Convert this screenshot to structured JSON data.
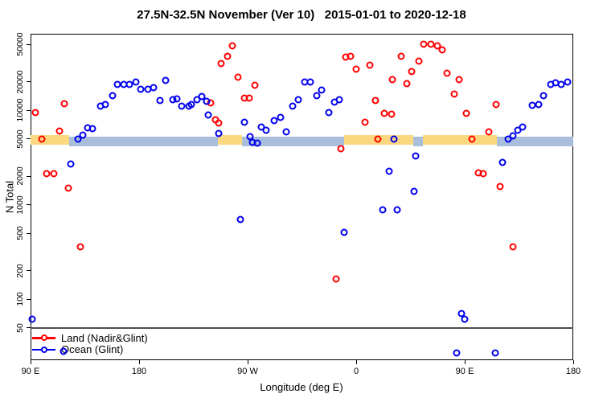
{
  "chart_data": {
    "type": "scatter",
    "title": "27.5N-32.5N November (Ver 10)   2015-01-01 to 2020-12-18",
    "xlabel": "Longitude (deg E)",
    "ylabel": "N Total",
    "x_axis": {
      "min": 90,
      "max": 540,
      "ticks": [
        {
          "value": 90,
          "label": "90 E"
        },
        {
          "value": 180,
          "label": "180"
        },
        {
          "value": 270,
          "label": "90 W"
        },
        {
          "value": 360,
          "label": "0"
        },
        {
          "value": 450,
          "label": "90 E"
        },
        {
          "value": 540,
          "label": "180"
        }
      ]
    },
    "y_axis": {
      "scale": "log",
      "ticks": [
        {
          "value": 50000,
          "label": "50000"
        },
        {
          "value": 20000,
          "label": "20000"
        },
        {
          "value": 10000,
          "label": "10000"
        },
        {
          "value": 5000,
          "label": "5000"
        },
        {
          "value": 2000,
          "label": "2000"
        },
        {
          "value": 1000,
          "label": "1000"
        },
        {
          "value": 500,
          "label": "500"
        },
        {
          "value": 200,
          "label": "200"
        },
        {
          "value": 100,
          "label": "100"
        },
        {
          "value": 50,
          "label": "50"
        }
      ]
    },
    "reference_line": {
      "y": 50,
      "color": "#4d4d4d"
    },
    "surface_band": {
      "n_level": 5000,
      "land_color": "#FBD87F",
      "ocean_color": "#A9BEDB",
      "segments": [
        {
          "from": 90,
          "to": 122,
          "surface": "land"
        },
        {
          "from": 122,
          "to": 245.3,
          "surface": "ocean"
        },
        {
          "from": 245.3,
          "to": 265.3,
          "surface": "land"
        },
        {
          "from": 265.3,
          "to": 350,
          "surface": "ocean"
        },
        {
          "from": 350,
          "to": 407.3,
          "surface": "land"
        },
        {
          "from": 407.3,
          "to": 415.3,
          "surface": "ocean"
        },
        {
          "from": 415.3,
          "to": 476.7,
          "surface": "land"
        },
        {
          "from": 476.7,
          "to": 540,
          "surface": "ocean"
        }
      ]
    },
    "series": [
      {
        "name": "Land (Nadir&Glint)",
        "color": "#FF0000",
        "points": [
          [
            94,
            9500
          ],
          [
            99,
            4950
          ],
          [
            103,
            2150
          ],
          [
            109,
            2150
          ],
          [
            114,
            6050
          ],
          [
            118,
            11800
          ],
          [
            121,
            1500
          ],
          [
            131,
            360
          ],
          [
            239,
            12000
          ],
          [
            243,
            7900
          ],
          [
            246,
            7300
          ],
          [
            248,
            31500
          ],
          [
            253,
            37000
          ],
          [
            257,
            48000
          ],
          [
            262,
            22500
          ],
          [
            267,
            13500
          ],
          [
            271,
            13500
          ],
          [
            276,
            18500
          ],
          [
            343,
            165
          ],
          [
            347,
            3900
          ],
          [
            351,
            36500
          ],
          [
            355,
            37000
          ],
          [
            360,
            27500
          ],
          [
            367,
            7400
          ],
          [
            371,
            30000
          ],
          [
            376,
            12700
          ],
          [
            378,
            4950
          ],
          [
            383,
            9250
          ],
          [
            389,
            9100
          ],
          [
            390,
            21300
          ],
          [
            397,
            37000
          ],
          [
            402,
            19300
          ],
          [
            406,
            25500
          ],
          [
            412,
            33000
          ],
          [
            416,
            50000
          ],
          [
            422,
            50000
          ],
          [
            427,
            48500
          ],
          [
            431,
            43500
          ],
          [
            435,
            24500
          ],
          [
            441,
            14900
          ],
          [
            445,
            21000
          ],
          [
            451,
            9250
          ],
          [
            456,
            4950
          ],
          [
            461,
            2180
          ],
          [
            465,
            2140
          ],
          [
            470,
            5850
          ],
          [
            476,
            11500
          ],
          [
            479,
            1550
          ],
          [
            490,
            360
          ]
        ]
      },
      {
        "name": "Ocean (Glint)",
        "color": "#0000EE",
        "points": [
          [
            91,
            62
          ],
          [
            117,
            28
          ],
          [
            123,
            2700
          ],
          [
            129,
            4950
          ],
          [
            133,
            5500
          ],
          [
            137,
            6500
          ],
          [
            141,
            6400
          ],
          [
            148,
            11100
          ],
          [
            152,
            11400
          ],
          [
            158,
            14300
          ],
          [
            162,
            18900
          ],
          [
            167,
            18900
          ],
          [
            172,
            18900
          ],
          [
            177,
            20000
          ],
          [
            181,
            16800
          ],
          [
            187,
            16600
          ],
          [
            192,
            17500
          ],
          [
            197,
            12700
          ],
          [
            202,
            20900
          ],
          [
            208,
            12900
          ],
          [
            211,
            13200
          ],
          [
            215,
            11100
          ],
          [
            221,
            11000
          ],
          [
            223,
            11600
          ],
          [
            228,
            13000
          ],
          [
            232,
            14000
          ],
          [
            236,
            12400
          ],
          [
            237,
            8900
          ],
          [
            246,
            5650
          ],
          [
            264,
            700
          ],
          [
            267,
            7400
          ],
          [
            272,
            5200
          ],
          [
            274,
            4600
          ],
          [
            278,
            4500
          ],
          [
            281,
            6700
          ],
          [
            285,
            6100
          ],
          [
            292,
            7750
          ],
          [
            297,
            8400
          ],
          [
            302,
            5850
          ],
          [
            307,
            11000
          ],
          [
            312,
            12900
          ],
          [
            317,
            20000
          ],
          [
            322,
            20000
          ],
          [
            327,
            14200
          ],
          [
            331,
            16450
          ],
          [
            337,
            9450
          ],
          [
            342,
            12100
          ],
          [
            346,
            13000
          ],
          [
            350,
            510
          ],
          [
            382,
            890
          ],
          [
            387,
            2260
          ],
          [
            391,
            4950
          ],
          [
            394,
            890
          ],
          [
            408,
            1380
          ],
          [
            409,
            3300
          ],
          [
            443,
            27
          ],
          [
            447,
            71
          ],
          [
            450,
            61
          ],
          [
            475,
            27
          ],
          [
            481,
            2800
          ],
          [
            486,
            4950
          ],
          [
            490,
            5400
          ],
          [
            494,
            6200
          ],
          [
            498,
            6700
          ],
          [
            506,
            11300
          ],
          [
            511,
            11400
          ],
          [
            515,
            14300
          ],
          [
            521,
            18900
          ],
          [
            525,
            19700
          ],
          [
            530,
            18900
          ],
          [
            535,
            20000
          ]
        ]
      }
    ]
  },
  "legend": {
    "items": [
      {
        "label": "Land (Nadir&Glint)"
      },
      {
        "label": "Ocean (Glint)"
      }
    ]
  }
}
